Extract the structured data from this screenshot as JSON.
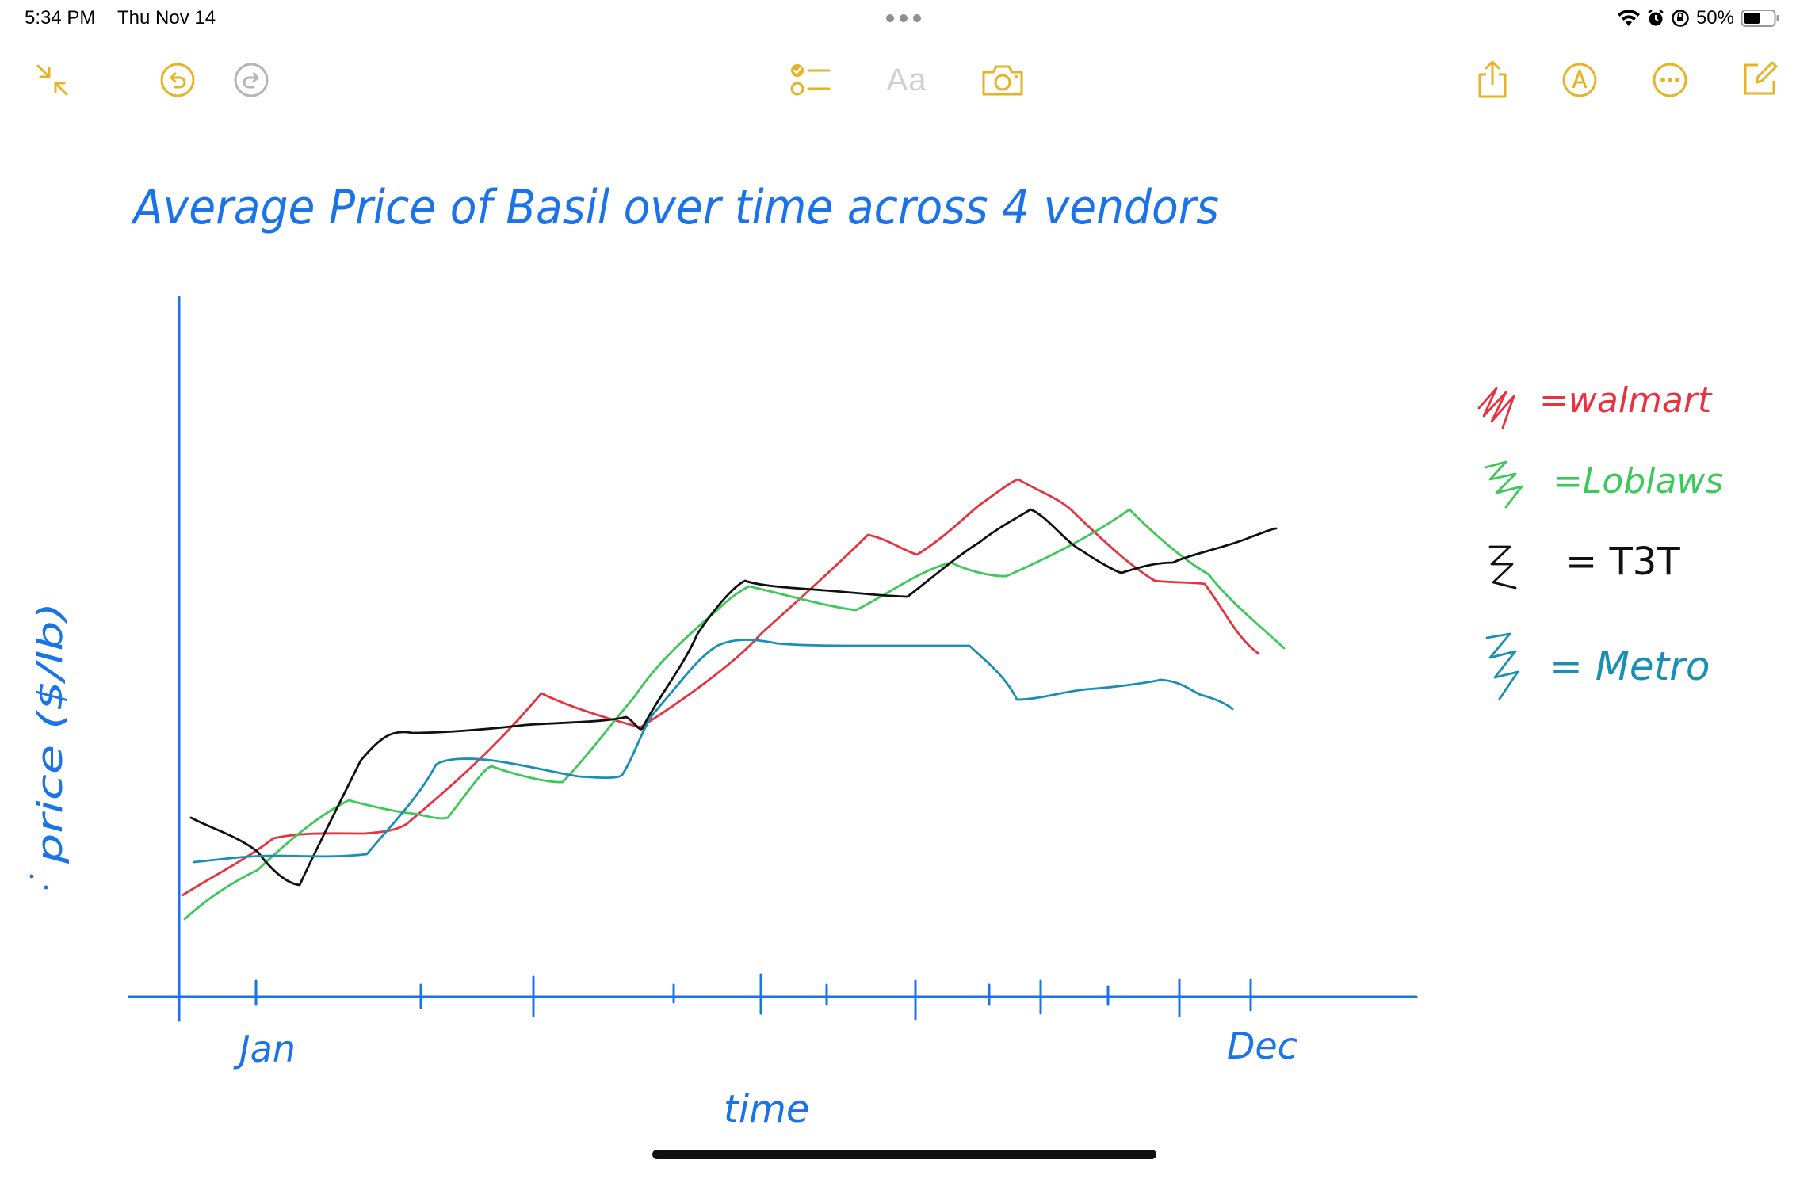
{
  "status_bar": {
    "time": "5:34 PM",
    "date": "Thu Nov 14",
    "battery": "50%"
  },
  "toolbar": {
    "format_label": "Aa",
    "accent_color": "#e6b325",
    "left_icons": [
      "collapse-icon",
      "undo-icon",
      "redo-icon"
    ],
    "center_icons": [
      "checklist-icon",
      "format-icon",
      "camera-icon"
    ],
    "right_icons": [
      "share-icon",
      "markup-icon",
      "more-icon",
      "compose-icon"
    ]
  },
  "note": {
    "title": "Average Price of Basil over time across 4 vendors",
    "y_label": "price ($/lb)",
    "x_label": "time",
    "x_start": "Jan",
    "x_end": "Dec",
    "colors": {
      "axis": "#1a73e8",
      "walmart": "#e8323f",
      "loblaws": "#3cc95a",
      "t3t": "#111111",
      "metro": "#1a8fb5"
    },
    "legend": [
      {
        "label": "=walmart",
        "color": "#e8323f"
      },
      {
        "label": "=Loblaws",
        "color": "#3cc95a"
      },
      {
        "label": "= T3T",
        "color": "#111111"
      },
      {
        "label": "= Metro",
        "color": "#1a8fb5"
      }
    ]
  }
}
